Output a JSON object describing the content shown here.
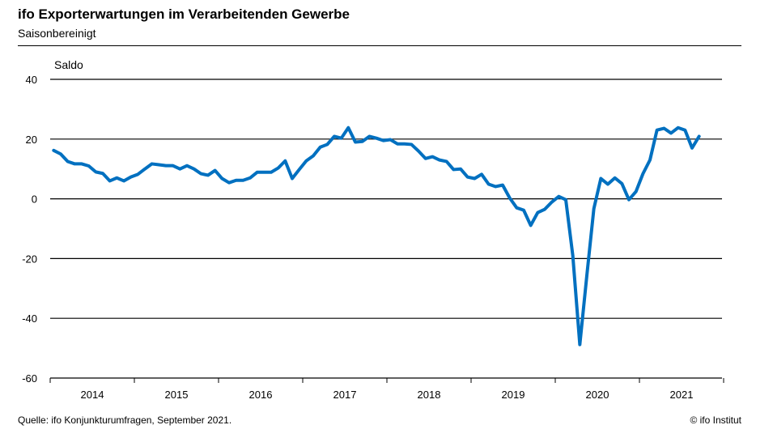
{
  "header": {
    "title": "ifo Exporterwartungen im Verarbeitenden Gewerbe",
    "subtitle": "Saisonbereinigt"
  },
  "footer": {
    "source": "Quelle: ifo Konjunkturumfragen,  September 2021.",
    "copyright": "© ifo Institut"
  },
  "chart_data": {
    "type": "line",
    "title": "ifo Exporterwartungen im Verarbeitenden Gewerbe",
    "subtitle": "Saisonbereinigt",
    "ylabel": "Saldo",
    "xlabel": "",
    "ylim": [
      -60,
      40
    ],
    "yticks": [
      40,
      20,
      0,
      -20,
      -40,
      -60
    ],
    "xtick_labels": [
      "2014",
      "2015",
      "2016",
      "2017",
      "2018",
      "2019",
      "2020",
      "2021"
    ],
    "x_start": "2014-01",
    "x_end": "2021-09",
    "frequency": "monthly",
    "grid": true,
    "color": "#0070C0",
    "series": [
      {
        "name": "Exporterwartungen",
        "values": [
          16.2,
          15,
          12.5,
          11.7,
          11.7,
          11,
          9,
          8.5,
          6,
          7,
          6,
          7.3,
          8.2,
          10,
          11.7,
          11.4,
          11.1,
          11.1,
          10,
          11.1,
          10,
          8.4,
          7.9,
          9.5,
          6.8,
          5.4,
          6.2,
          6.2,
          7,
          8.9,
          8.9,
          8.9,
          10.3,
          12.7,
          6.8,
          9.8,
          12.7,
          14.4,
          17.3,
          18.2,
          20.9,
          20.3,
          23.8,
          19,
          19.2,
          20.9,
          20.3,
          19.5,
          19.8,
          18.4,
          18.4,
          18.2,
          16,
          13.5,
          14.1,
          13,
          12.5,
          9.8,
          10,
          7.3,
          6.8,
          8.2,
          4.9,
          4.1,
          4.6,
          0.3,
          -3,
          -3.8,
          -8.9,
          -4.6,
          -3.5,
          -1.1,
          0.8,
          -0.3,
          -19,
          -48.8,
          -25.7,
          -3.3,
          6.8,
          4.9,
          7,
          5.1,
          -0.3,
          2.4,
          8.4,
          13,
          23,
          23.6,
          22,
          23.8,
          23,
          17,
          20.9
        ]
      }
    ]
  }
}
